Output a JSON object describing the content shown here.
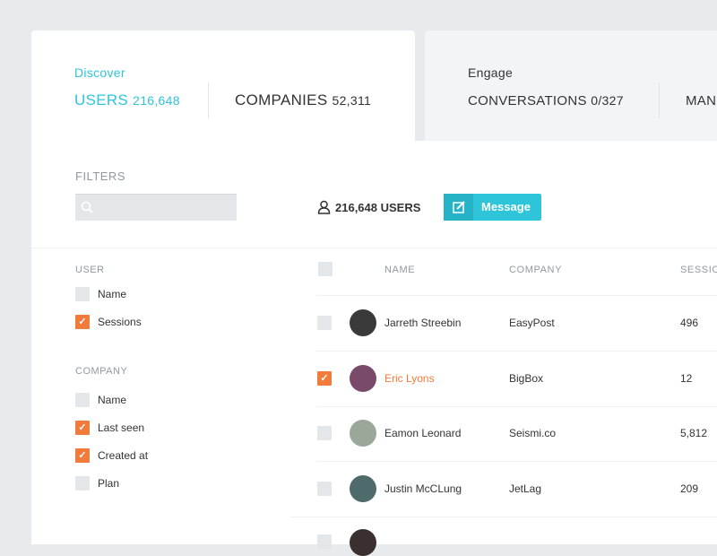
{
  "discover": {
    "label": "Discover",
    "tabs": [
      {
        "label": "USERS",
        "count": "216,648"
      },
      {
        "label": "COMPANIES",
        "count": "52,311"
      }
    ]
  },
  "engage": {
    "label": "Engage",
    "tabs": [
      {
        "label": "CONVERSATIONS",
        "count": "0/327"
      },
      {
        "label": "MAN",
        "count": ""
      }
    ]
  },
  "filters": {
    "title": "FILTERS",
    "search_placeholder": "",
    "user_section": "USER",
    "user_items": [
      {
        "label": "Name",
        "checked": false
      },
      {
        "label": "Sessions",
        "checked": true
      }
    ],
    "company_section": "COMPANY",
    "company_items": [
      {
        "label": "Name",
        "checked": false
      },
      {
        "label": "Last seen",
        "checked": true
      },
      {
        "label": "Created at",
        "checked": true
      },
      {
        "label": "Plan",
        "checked": false
      }
    ]
  },
  "toolbar": {
    "user_count": "216,648 USERS",
    "message_label": "Message"
  },
  "colors": {
    "accent": "#2ec4d9",
    "checked": "#f07b3b"
  },
  "table": {
    "headers": [
      "NAME",
      "COMPANY",
      "SESSIO"
    ],
    "rows": [
      {
        "name": "Jarreth Streebin",
        "company": "EasyPost",
        "sessions": "496",
        "checked": false,
        "avatar": "#3a3a3a"
      },
      {
        "name": "Eric Lyons",
        "company": "BigBox",
        "sessions": "12",
        "checked": true,
        "avatar": "#7a4a6a"
      },
      {
        "name": "Eamon Leonard",
        "company": "Seismi.co",
        "sessions": "5,812",
        "checked": false,
        "avatar": "#9aa89a"
      },
      {
        "name": "Justin McCLung",
        "company": "JetLag",
        "sessions": "209",
        "checked": false,
        "avatar": "#4f6a6a"
      }
    ]
  }
}
